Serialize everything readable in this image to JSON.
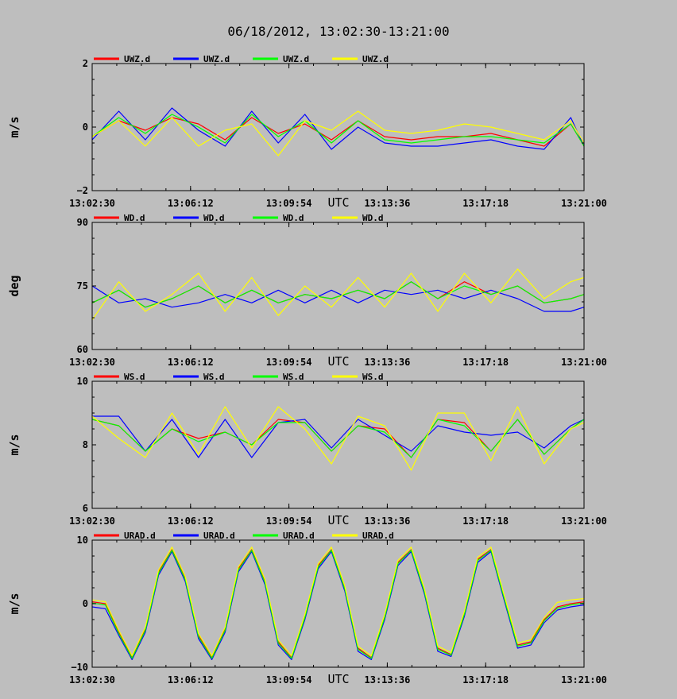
{
  "title": "06/18/2012, 13:02:30-13:21:00",
  "colors": {
    "background": "#bebebe",
    "frame": "#000000",
    "series": [
      "#ff0000",
      "#0000ff",
      "#00ff00",
      "#ffff00"
    ]
  },
  "chart_data": [
    {
      "type": "line",
      "legend": [
        "UWZ.d",
        "UWZ.d",
        "UWZ.d",
        "UWZ.d"
      ],
      "ylabel": "m/s",
      "xlabel": "UTC",
      "ylim": [
        -2,
        2
      ],
      "yticks": [
        "2",
        "0",
        "−2"
      ],
      "xticks": [
        "13:02:30",
        "13:06:12",
        "13:09:54",
        "13:13:36",
        "13:17:18",
        "13:21:00"
      ],
      "x": [
        "13:02:30",
        "13:03:30",
        "13:04:30",
        "13:05:30",
        "13:06:30",
        "13:07:30",
        "13:08:30",
        "13:09:30",
        "13:10:30",
        "13:11:30",
        "13:12:30",
        "13:13:30",
        "13:14:30",
        "13:15:30",
        "13:16:30",
        "13:17:30",
        "13:18:30",
        "13:19:30",
        "13:20:30",
        "13:21:00"
      ],
      "series": [
        {
          "values": [
            -0.3,
            0.2,
            -0.1,
            0.3,
            0.1,
            -0.4,
            0.3,
            -0.2,
            0.1,
            -0.4,
            0.2,
            -0.3,
            -0.4,
            -0.3,
            -0.3,
            -0.2,
            -0.4,
            -0.6,
            0.1,
            -0.6
          ]
        },
        {
          "values": [
            -0.4,
            0.5,
            -0.4,
            0.6,
            -0.1,
            -0.6,
            0.5,
            -0.5,
            0.4,
            -0.7,
            0.0,
            -0.5,
            -0.6,
            -0.6,
            -0.5,
            -0.4,
            -0.6,
            -0.7,
            0.3,
            -0.6
          ]
        },
        {
          "values": [
            -0.3,
            0.3,
            -0.2,
            0.4,
            0.0,
            -0.5,
            0.4,
            -0.3,
            0.2,
            -0.5,
            0.2,
            -0.4,
            -0.5,
            -0.4,
            -0.3,
            -0.3,
            -0.4,
            -0.5,
            0.1,
            -0.6
          ]
        },
        {
          "values": [
            -0.3,
            0.2,
            -0.6,
            0.3,
            -0.6,
            -0.1,
            0.1,
            -0.9,
            0.2,
            -0.1,
            0.5,
            -0.1,
            -0.2,
            -0.1,
            0.1,
            0.0,
            -0.2,
            -0.4,
            0.2,
            -0.5
          ]
        }
      ]
    },
    {
      "type": "line",
      "legend": [
        "WD.d",
        "WD.d",
        "WD.d",
        "WD.d"
      ],
      "ylabel": "deg",
      "xlabel": "UTC",
      "ylim": [
        60,
        90
      ],
      "yticks": [
        "90",
        "75",
        "60"
      ],
      "xticks": [
        "13:02:30",
        "13:06:12",
        "13:09:54",
        "13:13:36",
        "13:17:18",
        "13:21:00"
      ],
      "x": [
        "13:02:30",
        "13:03:30",
        "13:04:30",
        "13:05:30",
        "13:06:30",
        "13:07:30",
        "13:08:30",
        "13:09:30",
        "13:10:30",
        "13:11:30",
        "13:12:30",
        "13:13:30",
        "13:14:30",
        "13:15:30",
        "13:16:30",
        "13:17:30",
        "13:18:30",
        "13:19:30",
        "13:20:30",
        "13:21:00"
      ],
      "series": [
        {
          "values": [
            71,
            74,
            70,
            72,
            75,
            71,
            74,
            71,
            73,
            72,
            74,
            72,
            76,
            72,
            76,
            73,
            75,
            71,
            72,
            73
          ]
        },
        {
          "values": [
            75,
            71,
            72,
            70,
            71,
            73,
            71,
            74,
            71,
            74,
            71,
            74,
            73,
            74,
            72,
            74,
            72,
            69,
            69,
            70
          ]
        },
        {
          "values": [
            71,
            74,
            70,
            72,
            75,
            71,
            74,
            71,
            73,
            72,
            74,
            72,
            76,
            72,
            75,
            73,
            75,
            71,
            72,
            73
          ]
        },
        {
          "values": [
            67,
            76,
            69,
            73,
            78,
            69,
            77,
            68,
            75,
            70,
            77,
            70,
            78,
            69,
            78,
            71,
            79,
            72,
            76,
            77
          ]
        }
      ]
    },
    {
      "type": "line",
      "legend": [
        "WS.d",
        "WS.d",
        "WS.d",
        "WS.d"
      ],
      "ylabel": "m/s",
      "xlabel": "UTC",
      "ylim": [
        6,
        10
      ],
      "yticks": [
        "10",
        "8",
        "6"
      ],
      "xticks": [
        "13:02:30",
        "13:06:12",
        "13:09:54",
        "13:13:36",
        "13:17:18",
        "13:21:00"
      ],
      "x": [
        "13:02:30",
        "13:03:30",
        "13:04:30",
        "13:05:30",
        "13:06:30",
        "13:07:30",
        "13:08:30",
        "13:09:30",
        "13:10:30",
        "13:11:30",
        "13:12:30",
        "13:13:30",
        "13:14:30",
        "13:15:30",
        "13:16:30",
        "13:17:30",
        "13:18:30",
        "13:19:30",
        "13:20:30",
        "13:21:00"
      ],
      "series": [
        {
          "values": [
            8.8,
            8.6,
            7.8,
            8.5,
            8.2,
            8.4,
            8.0,
            8.8,
            8.7,
            7.8,
            8.6,
            8.5,
            7.6,
            8.8,
            8.7,
            7.8,
            8.8,
            7.7,
            8.5,
            8.8
          ]
        },
        {
          "values": [
            8.9,
            8.9,
            7.8,
            8.8,
            7.6,
            8.8,
            7.6,
            8.7,
            8.8,
            7.9,
            8.8,
            8.3,
            7.8,
            8.6,
            8.4,
            8.3,
            8.4,
            7.9,
            8.6,
            8.8
          ]
        },
        {
          "values": [
            8.8,
            8.6,
            7.8,
            8.5,
            8.1,
            8.4,
            8.0,
            8.7,
            8.7,
            7.8,
            8.6,
            8.4,
            7.6,
            8.8,
            8.6,
            7.8,
            8.8,
            7.7,
            8.5,
            8.8
          ]
        },
        {
          "values": [
            8.9,
            8.2,
            7.6,
            9.0,
            7.7,
            9.2,
            7.9,
            9.2,
            8.5,
            7.4,
            8.9,
            8.6,
            7.2,
            9.0,
            9.0,
            7.5,
            9.2,
            7.4,
            8.5,
            8.7
          ]
        }
      ]
    },
    {
      "type": "line",
      "legend": [
        "URAD.d",
        "URAD.d",
        "URAD.d",
        "URAD.d"
      ],
      "ylabel": "m/s",
      "xlabel": "UTC",
      "ylim": [
        -10,
        10
      ],
      "yticks": [
        "10",
        "0",
        "−10"
      ],
      "xticks": [
        "13:02:30",
        "13:06:12",
        "13:09:54",
        "13:13:36",
        "13:17:18",
        "13:21:00"
      ],
      "x": [
        "13:02:30",
        "13:03:00",
        "13:03:30",
        "13:04:00",
        "13:04:30",
        "13:05:00",
        "13:05:30",
        "13:06:00",
        "13:06:30",
        "13:07:00",
        "13:07:30",
        "13:08:00",
        "13:08:30",
        "13:09:00",
        "13:09:30",
        "13:10:00",
        "13:10:30",
        "13:11:00",
        "13:11:30",
        "13:12:00",
        "13:12:30",
        "13:13:00",
        "13:13:30",
        "13:14:00",
        "13:14:30",
        "13:15:00",
        "13:15:30",
        "13:16:00",
        "13:16:30",
        "13:17:00",
        "13:17:30",
        "13:18:00",
        "13:18:30",
        "13:19:00",
        "13:19:30",
        "13:20:00",
        "13:20:30",
        "13:21:00"
      ],
      "series": [
        {
          "values": [
            0.3,
            0.0,
            -4.5,
            -8.5,
            -4.0,
            5.0,
            8.5,
            4.0,
            -5.0,
            -8.5,
            -4.0,
            5.5,
            8.5,
            3.5,
            -6.0,
            -8.5,
            -2.0,
            6.0,
            8.5,
            2.5,
            -7.0,
            -8.5,
            -2.0,
            6.5,
            8.5,
            2.0,
            -7.0,
            -8.0,
            -1.5,
            7.0,
            8.5,
            1.0,
            -6.5,
            -6.0,
            -2.5,
            -0.5,
            0.0,
            0.3
          ]
        },
        {
          "values": [
            -0.5,
            -0.8,
            -5.0,
            -8.8,
            -4.5,
            4.5,
            8.2,
            3.5,
            -5.5,
            -8.8,
            -4.5,
            5.0,
            8.2,
            3.0,
            -6.5,
            -8.8,
            -2.5,
            5.5,
            8.2,
            2.0,
            -7.5,
            -8.8,
            -2.5,
            6.0,
            8.2,
            1.5,
            -7.5,
            -8.3,
            -2.0,
            6.5,
            8.2,
            0.5,
            -7.0,
            -6.5,
            -3.0,
            -1.0,
            -0.5,
            -0.2
          ]
        },
        {
          "values": [
            0.1,
            -0.2,
            -4.7,
            -8.6,
            -4.2,
            4.8,
            8.4,
            3.8,
            -5.2,
            -8.6,
            -4.2,
            5.3,
            8.4,
            3.3,
            -6.2,
            -8.6,
            -2.2,
            5.8,
            8.4,
            2.3,
            -7.2,
            -8.6,
            -2.2,
            6.3,
            8.4,
            1.8,
            -7.2,
            -8.1,
            -1.7,
            6.8,
            8.4,
            0.8,
            -6.7,
            -6.2,
            -2.7,
            -0.7,
            -0.2,
            0.1
          ]
        },
        {
          "values": [
            0.6,
            0.3,
            -4.2,
            -8.2,
            -3.7,
            5.3,
            8.9,
            4.3,
            -4.7,
            -8.2,
            -3.7,
            5.8,
            8.9,
            3.8,
            -5.7,
            -8.2,
            -1.7,
            6.3,
            8.9,
            2.8,
            -6.7,
            -8.2,
            -1.7,
            6.8,
            8.9,
            2.3,
            -6.7,
            -7.7,
            -1.2,
            7.3,
            8.9,
            1.3,
            -6.2,
            -5.7,
            -2.2,
            0.2,
            0.6,
            0.8
          ]
        }
      ]
    }
  ]
}
